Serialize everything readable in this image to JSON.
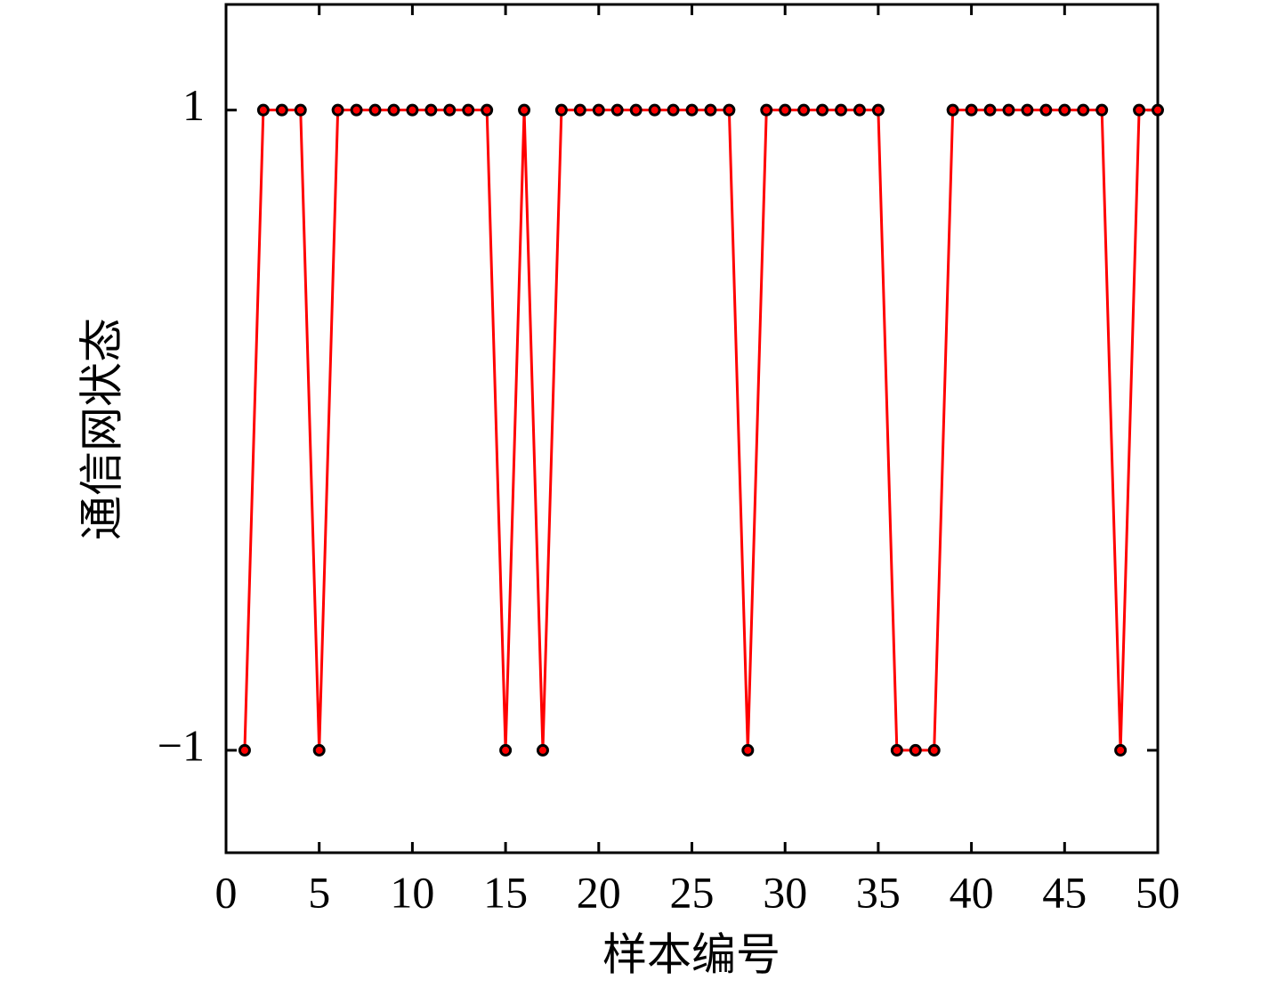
{
  "chart_data": {
    "type": "line",
    "xlabel": "样本编号",
    "ylabel": "通信网状态",
    "x": [
      1,
      2,
      3,
      4,
      5,
      6,
      7,
      8,
      9,
      10,
      11,
      12,
      13,
      14,
      15,
      16,
      17,
      18,
      19,
      20,
      21,
      22,
      23,
      24,
      25,
      26,
      27,
      28,
      29,
      30,
      31,
      32,
      33,
      34,
      35,
      36,
      37,
      38,
      39,
      40,
      41,
      42,
      43,
      44,
      45,
      46,
      47,
      48,
      49,
      50
    ],
    "series": [
      {
        "color": "#ff0000",
        "marker_color": "#000000",
        "values": [
          -1,
          1,
          1,
          1,
          -1,
          1,
          1,
          1,
          1,
          1,
          1,
          1,
          1,
          1,
          -1,
          1,
          -1,
          1,
          1,
          1,
          1,
          1,
          1,
          1,
          1,
          1,
          1,
          -1,
          1,
          1,
          1,
          1,
          1,
          1,
          1,
          -1,
          -1,
          -1,
          1,
          1,
          1,
          1,
          1,
          1,
          1,
          1,
          1,
          -1,
          1,
          1
        ]
      }
    ],
    "xlim": [
      0,
      50
    ],
    "xticks": [
      0,
      5,
      10,
      15,
      20,
      25,
      30,
      35,
      40,
      45,
      50
    ],
    "ylim": [
      -1.32,
      1.33
    ],
    "yticks": [
      {
        "value": -1,
        "label": "−1"
      },
      1
    ]
  }
}
